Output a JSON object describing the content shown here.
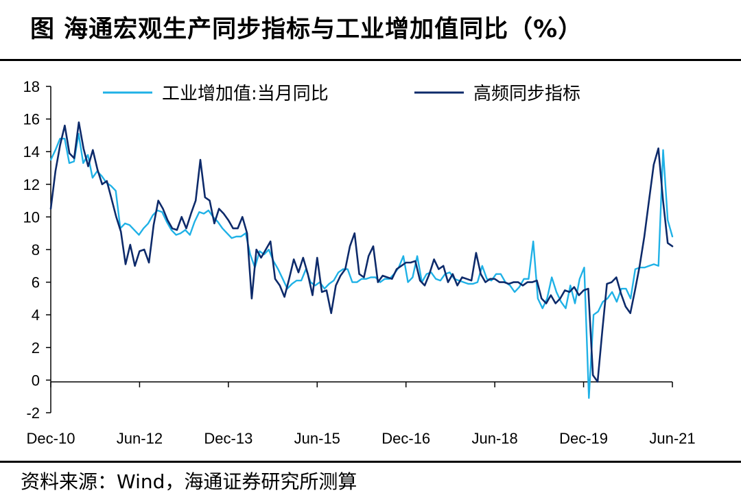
{
  "title": "图  海通宏观生产同步指标与工业增加值同比（%）",
  "source": "资料来源：Wind，海通证券研究所测算",
  "chart_data": {
    "type": "line",
    "xlabel": "",
    "ylabel": "",
    "ylim": [
      -2,
      18
    ],
    "yticks": [
      -2,
      0,
      2,
      4,
      6,
      8,
      10,
      12,
      14,
      16,
      18
    ],
    "xticks": [
      "Dec-10",
      "Jun-12",
      "Dec-13",
      "Jun-15",
      "Dec-16",
      "Jun-18",
      "Dec-19",
      "Jun-21"
    ],
    "legend_position": "top",
    "series": [
      {
        "name": "工业增加值:当月同比",
        "color": "#1fb1e6",
        "values": [
          13.5,
          14.1,
          14.8,
          14.8,
          13.3,
          13.4,
          15.1,
          13.3,
          13.8,
          12.4,
          12.8,
          12.5,
          12.1,
          11.9,
          11.6,
          9.3,
          9.6,
          9.5,
          9.2,
          8.9,
          9.3,
          9.6,
          10.1,
          10.4,
          10.3,
          9.7,
          9.2,
          8.9,
          9.0,
          9.2,
          8.9,
          9.7,
          10.3,
          10.2,
          10.4,
          10.0,
          9.7,
          9.3,
          9.0,
          8.7,
          8.8,
          8.8,
          9.0,
          7.7,
          6.9,
          7.9,
          7.7,
          8.0,
          7.3,
          6.8,
          6.2,
          5.6,
          5.9,
          6.1,
          6.1,
          6.8,
          6.0,
          5.8,
          6.0,
          5.6,
          5.9,
          6.1,
          6.6,
          6.8,
          6.8,
          6.0,
          6.0,
          6.2,
          6.2,
          6.3,
          6.3,
          6.0,
          6.2,
          6.2,
          6.5,
          6.9,
          7.6,
          6.0,
          6.3,
          7.6,
          6.0,
          6.5,
          6.6,
          6.2,
          6.1,
          6.5,
          6.6,
          6.2,
          6.1,
          6.0,
          5.9,
          5.9,
          6.0,
          7.0,
          6.2,
          6.1,
          6.5,
          6.5,
          6.0,
          5.8,
          5.4,
          5.7,
          6.2,
          6.2,
          8.5,
          5.0,
          4.4,
          5.0,
          6.3,
          5.4,
          4.8,
          4.4,
          5.8,
          4.7,
          6.2,
          6.9,
          -1.1,
          4.0,
          4.2,
          4.8,
          5.0,
          5.4,
          4.8,
          5.6,
          5.6,
          5.0,
          6.8,
          6.9,
          6.9,
          7.0,
          7.1,
          7.0,
          14.1,
          9.8,
          8.8
        ],
        "labels": []
      },
      {
        "name": "高频同步指标",
        "color": "#0d2a6a",
        "values": [
          10.5,
          12.8,
          14.4,
          15.6,
          13.9,
          13.6,
          15.8,
          14.2,
          13.1,
          14.1,
          12.9,
          12.0,
          12.2,
          11.1,
          10.0,
          9.1,
          7.1,
          8.3,
          7.0,
          7.9,
          8.0,
          7.2,
          9.5,
          11.0,
          10.5,
          9.8,
          9.3,
          9.2,
          10.0,
          9.3,
          10.2,
          11.0,
          13.5,
          11.2,
          11.0,
          9.6,
          10.5,
          10.2,
          9.8,
          9.3,
          9.3,
          10.0,
          9.0,
          5.0,
          8.0,
          7.5,
          8.0,
          8.5,
          6.2,
          5.8,
          5.1,
          6.2,
          7.4,
          6.6,
          7.5,
          6.5,
          5.2,
          7.5,
          5.4,
          5.5,
          4.1,
          5.8,
          6.4,
          6.8,
          8.2,
          9.0,
          6.5,
          6.3,
          7.6,
          8.2,
          6.0,
          6.4,
          6.3,
          6.2,
          6.8,
          7.0,
          7.2,
          7.2,
          7.3,
          6.1,
          5.8,
          6.5,
          7.4,
          6.8,
          7.0,
          6.0,
          6.5,
          5.8,
          6.3,
          6.2,
          6.1,
          7.8,
          6.5,
          6.0,
          6.2,
          6.2,
          6.0,
          6.0,
          5.9,
          6.0,
          6.0,
          5.8,
          6.0,
          6.0,
          6.1,
          5.0,
          4.7,
          5.2,
          4.7,
          5.0,
          5.5,
          5.4,
          5.7,
          5.2,
          5.5,
          5.6,
          0.3,
          -0.1,
          3.0,
          5.9,
          6.0,
          6.3,
          5.3,
          4.5,
          4.1,
          5.5,
          7.0,
          8.8,
          11.0,
          13.2,
          14.2,
          11.0,
          8.4,
          8.2
        ]
      }
    ]
  }
}
